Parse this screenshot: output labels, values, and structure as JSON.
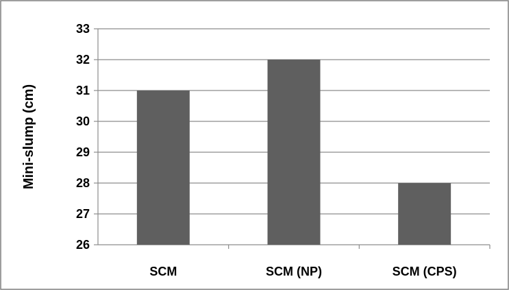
{
  "chart_data": {
    "type": "bar",
    "title": "",
    "xlabel": "",
    "ylabel": "Mini-slump (cm)",
    "categories": [
      "SCM",
      "SCM (NP)",
      "SCM (CPS)"
    ],
    "values": [
      31,
      32,
      28
    ],
    "ylim": [
      26,
      33
    ],
    "yticks": [
      "26",
      "27",
      "28",
      "29",
      "30",
      "31",
      "32",
      "33"
    ],
    "grid": true,
    "legend": "none",
    "bar_color": "#5f5f5f",
    "grid_color": "#8c8c8c",
    "border_color": "#7f7f7f"
  }
}
